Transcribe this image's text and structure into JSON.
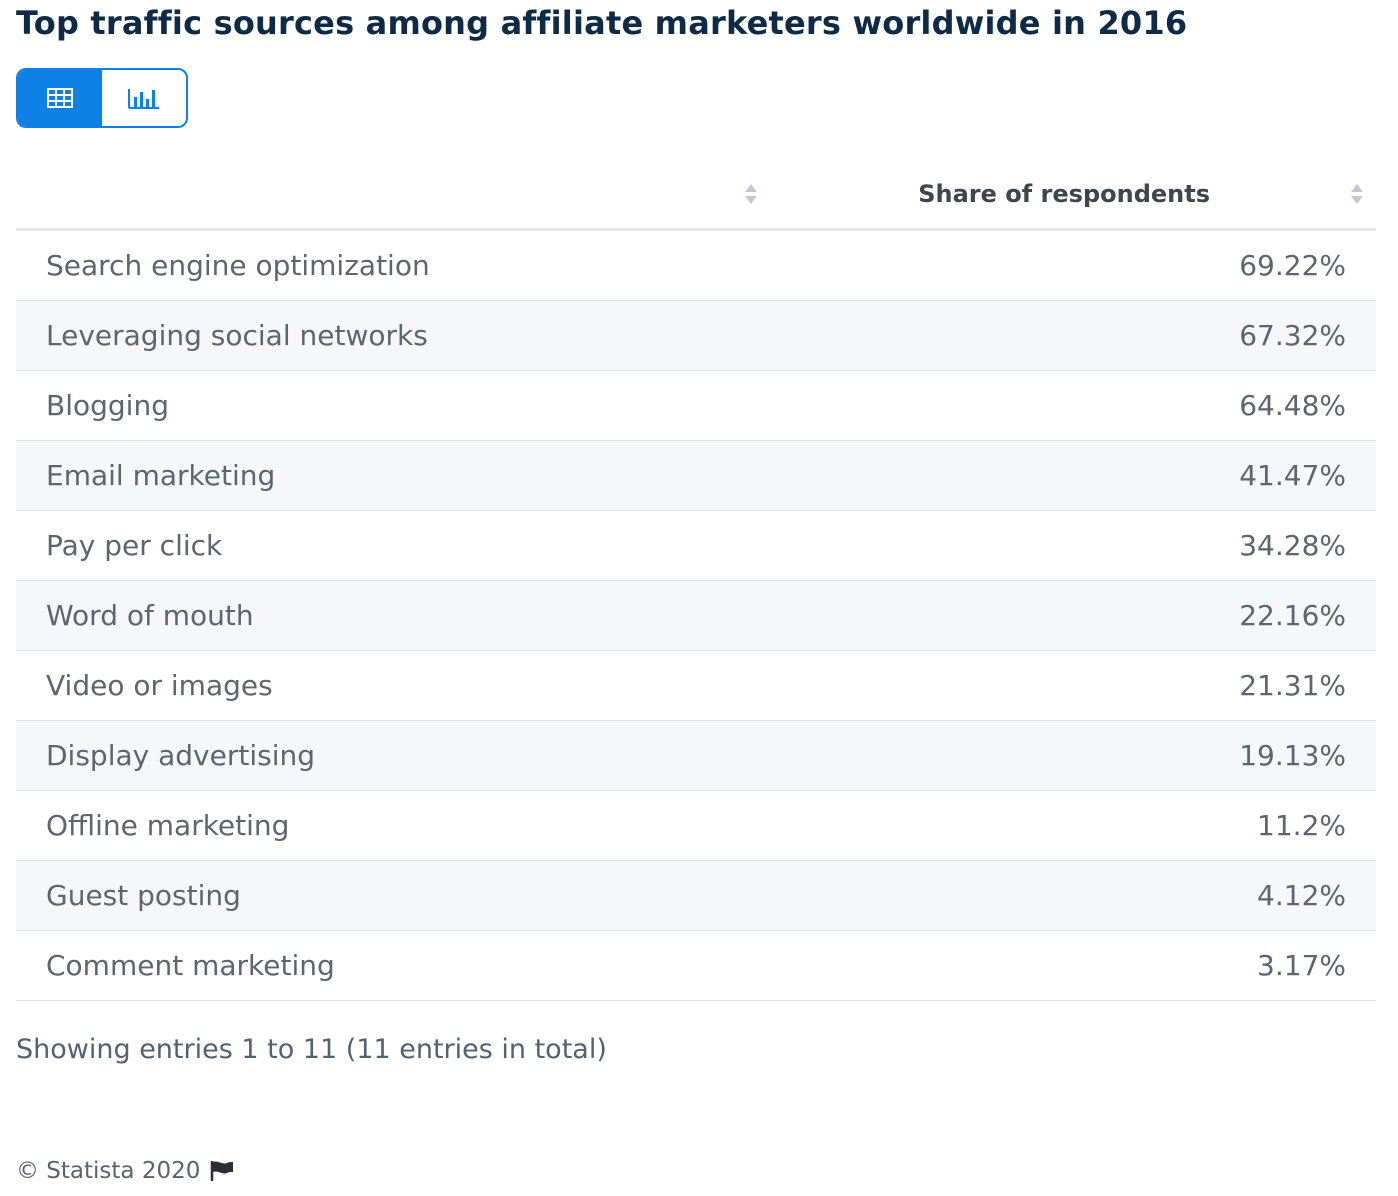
{
  "title": "Top traffic sources among affiliate marketers worldwide in 2016",
  "view_toggle": {
    "table_icon": "table-icon",
    "chart_icon": "bar-chart-icon",
    "active": "table"
  },
  "colors": {
    "accent": "#0f80e6",
    "title": "#0f2a44",
    "row_alt": "#f5f7fa"
  },
  "table": {
    "headers": [
      "",
      "Share of respondents"
    ]
  },
  "chart_data": {
    "type": "table",
    "categories": [
      "Search engine optimization",
      "Leveraging social networks",
      "Blogging",
      "Email marketing",
      "Pay per click",
      "Word of mouth",
      "Video or images",
      "Display advertising",
      "Offline marketing",
      "Guest posting",
      "Comment marketing"
    ],
    "series": [
      {
        "name": "Share of respondents",
        "values": [
          69.22,
          67.32,
          64.48,
          41.47,
          34.28,
          22.16,
          21.31,
          19.13,
          11.2,
          4.12,
          3.17
        ],
        "labels": [
          "69.22%",
          "67.32%",
          "64.48%",
          "41.47%",
          "34.28%",
          "22.16%",
          "21.31%",
          "19.13%",
          "11.2%",
          "4.12%",
          "3.17%"
        ]
      }
    ]
  },
  "entries_text": "Showing entries 1 to 11 (11 entries in total)",
  "footer": {
    "copyright": "© Statista 2020",
    "flag_icon": "flag-icon"
  }
}
